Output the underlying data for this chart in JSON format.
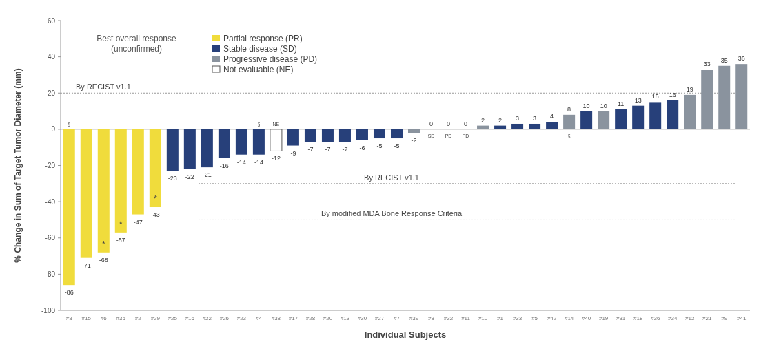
{
  "chart_data": {
    "type": "bar",
    "stacked": true,
    "ylabel": "% Change in Sum of Target Tumor Diameter (mm)",
    "xlabel": "Individual Subjects",
    "legend_title": "Best overall response (unconfirmed)",
    "legend": "top left",
    "data_labels": true,
    "grid": false,
    "categories": [
      "#3",
      "#15",
      "#6",
      "#35",
      "#2",
      "#29",
      "#25",
      "#16",
      "#22",
      "#26",
      "#23",
      "#4",
      "#38",
      "#17",
      "#28",
      "#20",
      "#13",
      "#30",
      "#27",
      "#7",
      "#39",
      "#8",
      "#32",
      "#11",
      "#10",
      "#1",
      "#33",
      "#5",
      "#42",
      "#14",
      "#40",
      "#19",
      "#31",
      "#18",
      "#36",
      "#34",
      "#12",
      "#21",
      "#9",
      "#41"
    ],
    "series": [
      {
        "name": "Partial response (PR)",
        "color": "#f0dc3c",
        "values": [
          -86,
          -71,
          -68,
          -57,
          -47,
          -43,
          null,
          null,
          null,
          null,
          null,
          null,
          null,
          null,
          null,
          null,
          null,
          null,
          null,
          null,
          null,
          null,
          null,
          null,
          null,
          null,
          null,
          null,
          null,
          null,
          null,
          null,
          null,
          null,
          null,
          null,
          null,
          null,
          null,
          null
        ]
      },
      {
        "name": "Stable disease (SD)",
        "color": "#27407a",
        "values": [
          null,
          null,
          null,
          null,
          null,
          null,
          -23,
          -22,
          -21,
          -16,
          -14,
          -14,
          null,
          -9,
          -7,
          -7,
          -7,
          -6,
          -5,
          -5,
          null,
          0,
          null,
          null,
          null,
          2,
          3,
          3,
          4,
          null,
          10,
          null,
          11,
          13,
          15,
          16,
          null,
          null,
          null,
          null
        ]
      },
      {
        "name": "Progressive disease (PD)",
        "color": "#8a939e",
        "values": [
          null,
          null,
          null,
          null,
          null,
          null,
          null,
          null,
          null,
          null,
          null,
          null,
          null,
          null,
          null,
          null,
          null,
          null,
          null,
          null,
          -2,
          null,
          0,
          0,
          2,
          null,
          null,
          null,
          null,
          8,
          null,
          10,
          null,
          null,
          null,
          null,
          19,
          33,
          35,
          36
        ]
      },
      {
        "name": "Not evaluable (NE)",
        "color": "#ffffff",
        "values": [
          null,
          null,
          null,
          null,
          null,
          null,
          null,
          null,
          null,
          null,
          null,
          null,
          -12,
          null,
          null,
          null,
          null,
          null,
          null,
          null,
          null,
          null,
          null,
          null,
          null,
          null,
          null,
          null,
          null,
          null,
          null,
          null,
          null,
          null,
          null,
          null,
          null,
          null,
          null,
          null
        ]
      }
    ],
    "ylim": [
      -100,
      60
    ],
    "yticks": [
      -100,
      -80,
      -60,
      -40,
      -20,
      0,
      20,
      40,
      60
    ],
    "ref_lines": [
      {
        "axis": "y",
        "value": 20,
        "label": "By RECIST v1.1",
        "line_style": "dotted"
      },
      {
        "axis": "y",
        "value": -30,
        "label": "By RECIST v1.1",
        "line_style": "dotted"
      },
      {
        "axis": "y",
        "value": -50,
        "label": "By modified MDA Bone Response Criteria",
        "line_style": "dotted"
      }
    ],
    "annotations": [
      {
        "text": "§",
        "x": "#3",
        "y": 0
      },
      {
        "text": "§",
        "x": "#4",
        "y": 0
      },
      {
        "text": "NE",
        "x": "#38",
        "y": 0
      },
      {
        "text": "§",
        "x": "#14",
        "y": 0
      },
      {
        "text": "SD",
        "x": "#8",
        "y": 0
      },
      {
        "text": "PD",
        "x": "#32",
        "y": 0
      },
      {
        "text": "PD",
        "x": "#11",
        "y": 0
      },
      {
        "text": "*",
        "x": "#6",
        "y": -68
      },
      {
        "text": "*",
        "x": "#35",
        "y": -57
      },
      {
        "text": "*",
        "x": "#29",
        "y": -43
      }
    ]
  }
}
